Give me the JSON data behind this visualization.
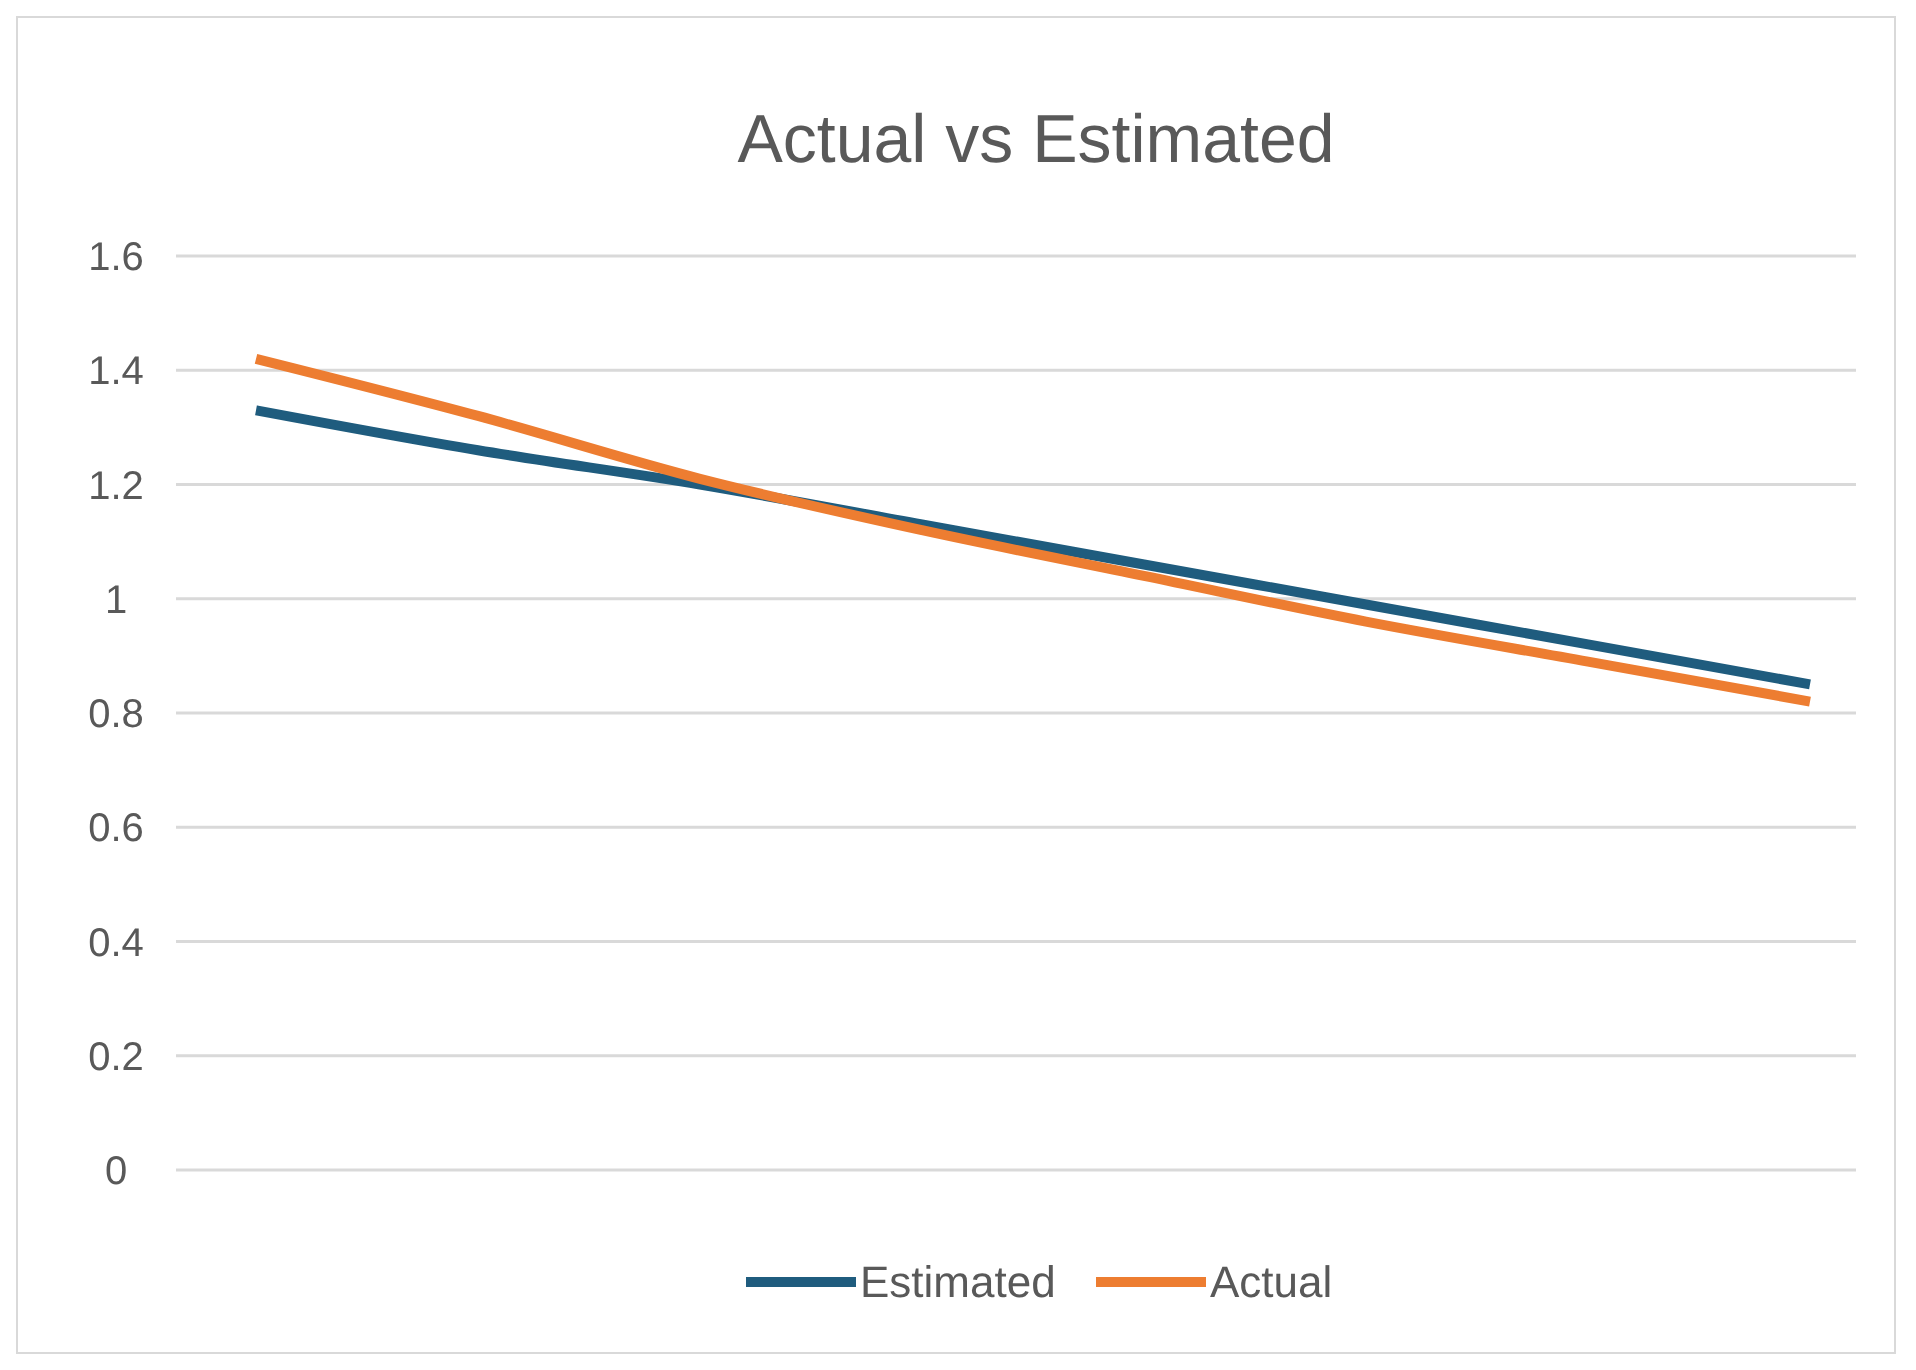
{
  "chart_data": {
    "type": "line",
    "title": "Actual vs Estimated",
    "categories": [
      null,
      null,
      null,
      null,
      null,
      null,
      null,
      null
    ],
    "series": [
      {
        "name": "Estimated",
        "color": "#1f5c7e",
        "values": [
          1.33,
          1.26,
          1.2,
          1.13,
          1.06,
          0.99,
          0.92,
          0.85
        ]
      },
      {
        "name": "Actual",
        "color": "#ed7d31",
        "values": [
          1.42,
          1.32,
          1.21,
          1.12,
          1.04,
          0.96,
          0.89,
          0.82
        ]
      }
    ],
    "ylim": [
      0,
      1.6
    ],
    "yticks": [
      0,
      0.2,
      0.4,
      0.6,
      0.8,
      1,
      1.2,
      1.4,
      1.6
    ],
    "grid": "y",
    "legend": "bottom",
    "marker": "none",
    "line_style": "solid"
  }
}
